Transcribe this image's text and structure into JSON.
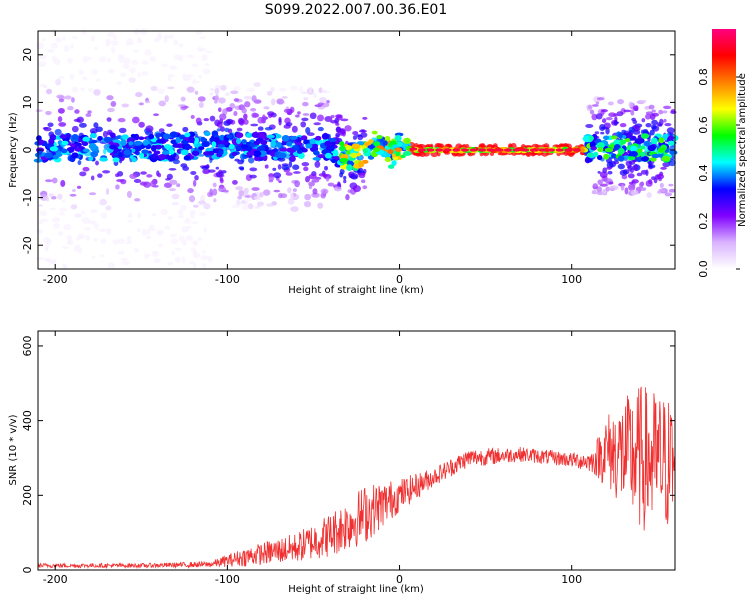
{
  "title": "S099.2022.007.00.36.E01",
  "chart_data": [
    {
      "type": "heatmap",
      "xlabel": "Height of straight line (km)",
      "ylabel": "Frequency (Hz)",
      "xlim": [
        -210,
        160
      ],
      "ylim": [
        -25,
        25
      ],
      "x_ticks": [
        -200,
        -100,
        0,
        100
      ],
      "y_ticks": [
        20,
        10,
        0,
        -10,
        -20
      ],
      "colorbar": {
        "label": "Normalized spectral amplitude",
        "range": [
          0.0,
          1.0
        ],
        "ticks": [
          0.0,
          0.2,
          0.4,
          0.6,
          0.8
        ],
        "colors": [
          "#ffffff",
          "#d9b3ff",
          "#8000ff",
          "#0000ff",
          "#00ffff",
          "#00ff00",
          "#ffff00",
          "#ff8000",
          "#ff0000",
          "#ff0080"
        ]
      },
      "ridge": [
        {
          "x": -205,
          "y": 0.5
        },
        {
          "x": -150,
          "y": 0.5
        },
        {
          "x": -100,
          "y": 1.0
        },
        {
          "x": -60,
          "y": 0.5
        },
        {
          "x": -40,
          "y": 0.5
        },
        {
          "x": -30,
          "y": -2.0
        },
        {
          "x": -25,
          "y": -1.5
        },
        {
          "x": -20,
          "y": 0.0
        },
        {
          "x": -15,
          "y": 1.5
        },
        {
          "x": -8,
          "y": 1.5
        },
        {
          "x": -5,
          "y": -1.0
        },
        {
          "x": 0,
          "y": 1.0
        },
        {
          "x": 10,
          "y": 0.0
        },
        {
          "x": 105,
          "y": 0.0
        },
        {
          "x": 120,
          "y": 1.0
        },
        {
          "x": 140,
          "y": 0.5
        },
        {
          "x": 160,
          "y": 0.5
        }
      ]
    },
    {
      "type": "line",
      "xlabel": "Height of straight line (km)",
      "ylabel": "SNR (10 * v/v)",
      "xlim": [
        -210,
        160
      ],
      "ylim": [
        0,
        640
      ],
      "x_ticks": [
        -200,
        -100,
        0,
        100
      ],
      "y_ticks": [
        0,
        200,
        400,
        600
      ],
      "color": "#f03030",
      "series_envelope": [
        {
          "x": -210,
          "mean": 12,
          "noise": 6
        },
        {
          "x": -150,
          "mean": 12,
          "noise": 6
        },
        {
          "x": -110,
          "mean": 15,
          "noise": 8
        },
        {
          "x": -90,
          "mean": 35,
          "noise": 25
        },
        {
          "x": -60,
          "mean": 60,
          "noise": 40
        },
        {
          "x": -40,
          "mean": 95,
          "noise": 60
        },
        {
          "x": -20,
          "mean": 150,
          "noise": 80
        },
        {
          "x": 0,
          "mean": 200,
          "noise": 45
        },
        {
          "x": 20,
          "mean": 250,
          "noise": 25
        },
        {
          "x": 40,
          "mean": 300,
          "noise": 25
        },
        {
          "x": 70,
          "mean": 310,
          "noise": 20
        },
        {
          "x": 100,
          "mean": 295,
          "noise": 20
        },
        {
          "x": 112,
          "mean": 290,
          "noise": 30
        },
        {
          "x": 120,
          "mean": 320,
          "noise": 100
        },
        {
          "x": 140,
          "mean": 300,
          "noise": 200
        },
        {
          "x": 160,
          "mean": 280,
          "noise": 180
        }
      ]
    }
  ]
}
